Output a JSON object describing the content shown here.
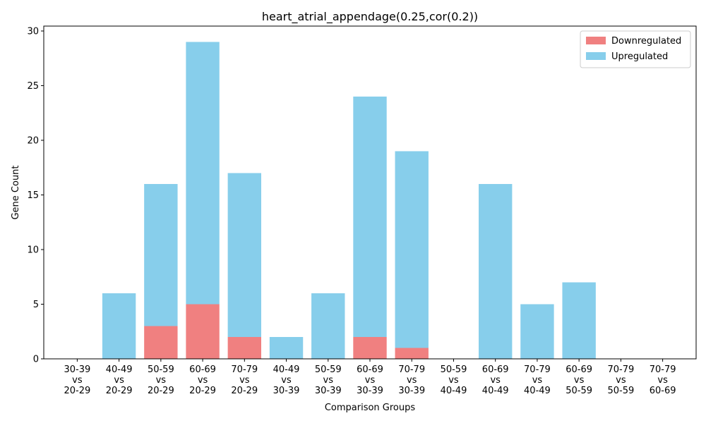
{
  "chart_data": {
    "type": "bar",
    "stacked": true,
    "title": "heart_atrial_appendage(0.25,cor(0.2))",
    "xlabel": "Comparison Groups",
    "ylabel": "Gene Count",
    "ylim": [
      0,
      30.45
    ],
    "yticks": [
      0,
      5,
      10,
      15,
      20,
      25,
      30
    ],
    "grid": false,
    "legend_position": "top-right",
    "categories": [
      [
        "30-39",
        "vs",
        "20-29"
      ],
      [
        "40-49",
        "vs",
        "20-29"
      ],
      [
        "50-59",
        "vs",
        "20-29"
      ],
      [
        "60-69",
        "vs",
        "20-29"
      ],
      [
        "70-79",
        "vs",
        "20-29"
      ],
      [
        "40-49",
        "vs",
        "30-39"
      ],
      [
        "50-59",
        "vs",
        "30-39"
      ],
      [
        "60-69",
        "vs",
        "30-39"
      ],
      [
        "70-79",
        "vs",
        "30-39"
      ],
      [
        "50-59",
        "vs",
        "40-49"
      ],
      [
        "60-69",
        "vs",
        "40-49"
      ],
      [
        "70-79",
        "vs",
        "40-49"
      ],
      [
        "60-69",
        "vs",
        "50-59"
      ],
      [
        "70-79",
        "vs",
        "50-59"
      ],
      [
        "70-79",
        "vs",
        "60-69"
      ]
    ],
    "series": [
      {
        "name": "Downregulated",
        "color": "#f08080",
        "values": [
          0,
          0,
          3,
          5,
          2,
          0,
          0,
          2,
          1,
          0,
          0,
          0,
          0,
          0,
          0
        ]
      },
      {
        "name": "Upregulated",
        "color": "#87ceeb",
        "values": [
          0,
          6,
          13,
          24,
          15,
          2,
          6,
          22,
          18,
          0,
          16,
          5,
          7,
          0,
          0
        ]
      }
    ]
  }
}
